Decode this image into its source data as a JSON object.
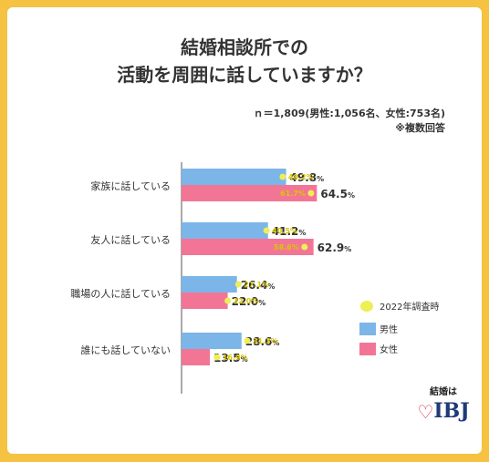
{
  "title_line1": "結婚相談所での",
  "title_line2": "活動を周囲に話していますか？",
  "note_line1": "ｎ＝1,809(男性:1,056名、女性:753名)",
  "note_line2": "※複数回答",
  "logo": {
    "sub": "結婚は",
    "main": "IBJ"
  },
  "colors": {
    "male": "#7CB5E8",
    "female": "#F27596",
    "prev": "#EEEE55",
    "background": "#F5C242"
  },
  "chart_data": {
    "type": "bar",
    "orientation": "horizontal",
    "unit": "%",
    "categories": [
      "家族に話している",
      "友人に話している",
      "職場の人に話している",
      "誰にも話していない"
    ],
    "series": [
      {
        "name": "男性",
        "values": [
          49.8,
          41.2,
          26.4,
          28.6
        ]
      },
      {
        "name": "女性",
        "values": [
          64.5,
          62.9,
          22.0,
          13.5
        ]
      }
    ],
    "previous": {
      "name": "2022年調査時",
      "male": [
        48.2,
        40.5,
        27.1,
        31.3
      ],
      "female": [
        61.7,
        58.6,
        22.0,
        16.9
      ]
    },
    "legend_position": "right",
    "grid": false
  }
}
